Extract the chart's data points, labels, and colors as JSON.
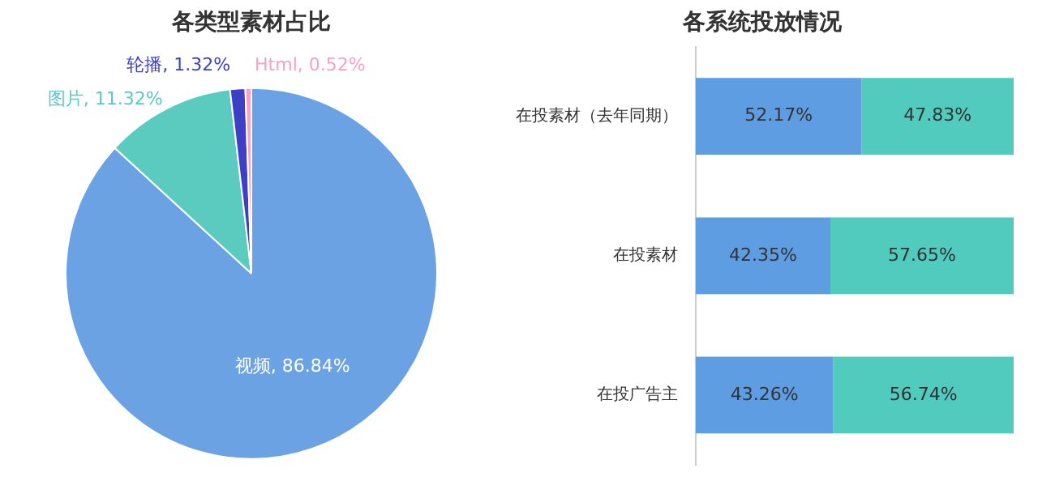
{
  "chart_data": [
    {
      "type": "pie",
      "title": "各类型素材占比",
      "categories": [
        "视频",
        "图片",
        "轮播",
        "Html"
      ],
      "values": [
        86.84,
        11.32,
        1.32,
        0.52
      ],
      "colors": [
        "#6aa2e4",
        "#5ccbbf",
        "#3d3fc4",
        "#f3a3c8"
      ],
      "value_labels": [
        "86.84%",
        "11.32%",
        "1.32%",
        "0.52%"
      ],
      "legend": false
    },
    {
      "type": "bar",
      "title": "各系统投放情况",
      "orientation": "horizontal",
      "stacked": true,
      "categories": [
        "在投素材（去年同期）",
        "在投素材",
        "在投广告主"
      ],
      "series": [
        {
          "color": "#5f9de2",
          "values": [
            52.17,
            42.35,
            43.26
          ],
          "value_labels": [
            "52.17%",
            "42.35%",
            "43.26%"
          ]
        },
        {
          "color": "#52cbbf",
          "values": [
            47.83,
            57.65,
            56.74
          ],
          "value_labels": [
            "47.83%",
            "57.65%",
            "56.74%"
          ]
        }
      ],
      "legend": false,
      "grid": false
    }
  ]
}
